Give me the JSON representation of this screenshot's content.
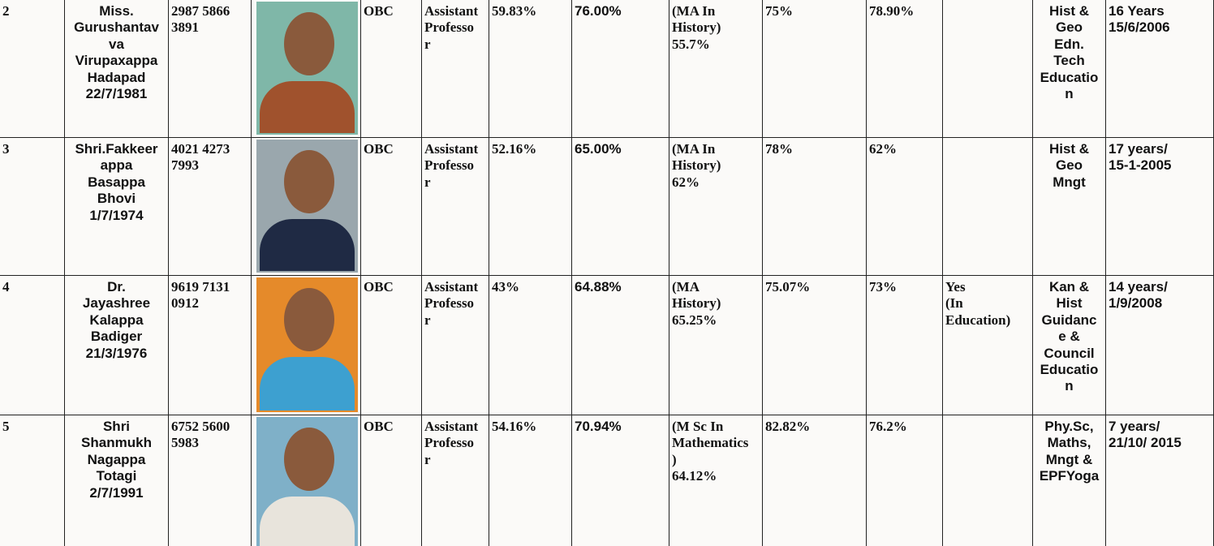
{
  "table": {
    "rows": [
      {
        "no": "2",
        "name": "Miss.\nGurushantav\nva\nVirupaxappa\nHadapad\n22/7/1981",
        "id": "2987 5866\n3891",
        "category": "OBC",
        "designation": "Assistant\nProfesso\nr",
        "pct1": "59.83%",
        "pct2": "76.00%",
        "pg": "(MA In\nHistory)\n55.7%",
        "pct3": "75%",
        "pct4": "78.90%",
        "subjects": "Hist &\nGeo\nEdn.\nTech\nEducatio\nn",
        "experience": "16 Years\n15/6/2006"
      },
      {
        "no": "3",
        "name": "Shri.Fakkeer\nappa\nBasappa\nBhovi\n1/7/1974",
        "id": "4021 4273\n7993",
        "category": "OBC",
        "designation": "Assistant\nProfesso\nr",
        "pct1": "52.16%",
        "pct2": "65.00%",
        "pg": "(MA In\nHistory)\n62%",
        "pct3": "78%",
        "pct4": "62%",
        "subjects": "Hist &\nGeo\nMngt",
        "experience": "17 years/\n15-1-2005"
      },
      {
        "no": "4",
        "name": "Dr.\nJayashree\nKalappa\nBadiger\n21/3/1976",
        "id": "9619 7131\n0912",
        "category": "OBC",
        "designation": "Assistant\nProfesso\nr",
        "pct1": "43%",
        "pct2": "64.88%",
        "pg": "(MA\nHistory)\n65.25%",
        "pct3": "75.07%",
        "pct4": "73%",
        "phd": "Yes\n(In\nEducation)",
        "subjects": "Kan &\nHist\nGuidanc\ne &\nCouncil\nEducatio\nn",
        "experience": "14 years/\n1/9/2008"
      },
      {
        "no": "5",
        "name": "Shri\nShanmukh\nNagappa\nTotagi\n2/7/1991",
        "id": "6752 5600\n5983",
        "category": "OBC",
        "designation": "Assistant\nProfesso\nr",
        "pct1": "54.16%",
        "pct2": "70.94%",
        "pg": "(M Sc In\nMathematics\n)\n64.12%",
        "pct3": "82.82%",
        "pct4": "76.2%",
        "subjects": "Phy.Sc,\nMaths,\nMngt &\nEPFYoga",
        "experience": "7 years/\n21/10/ 2015"
      }
    ]
  }
}
